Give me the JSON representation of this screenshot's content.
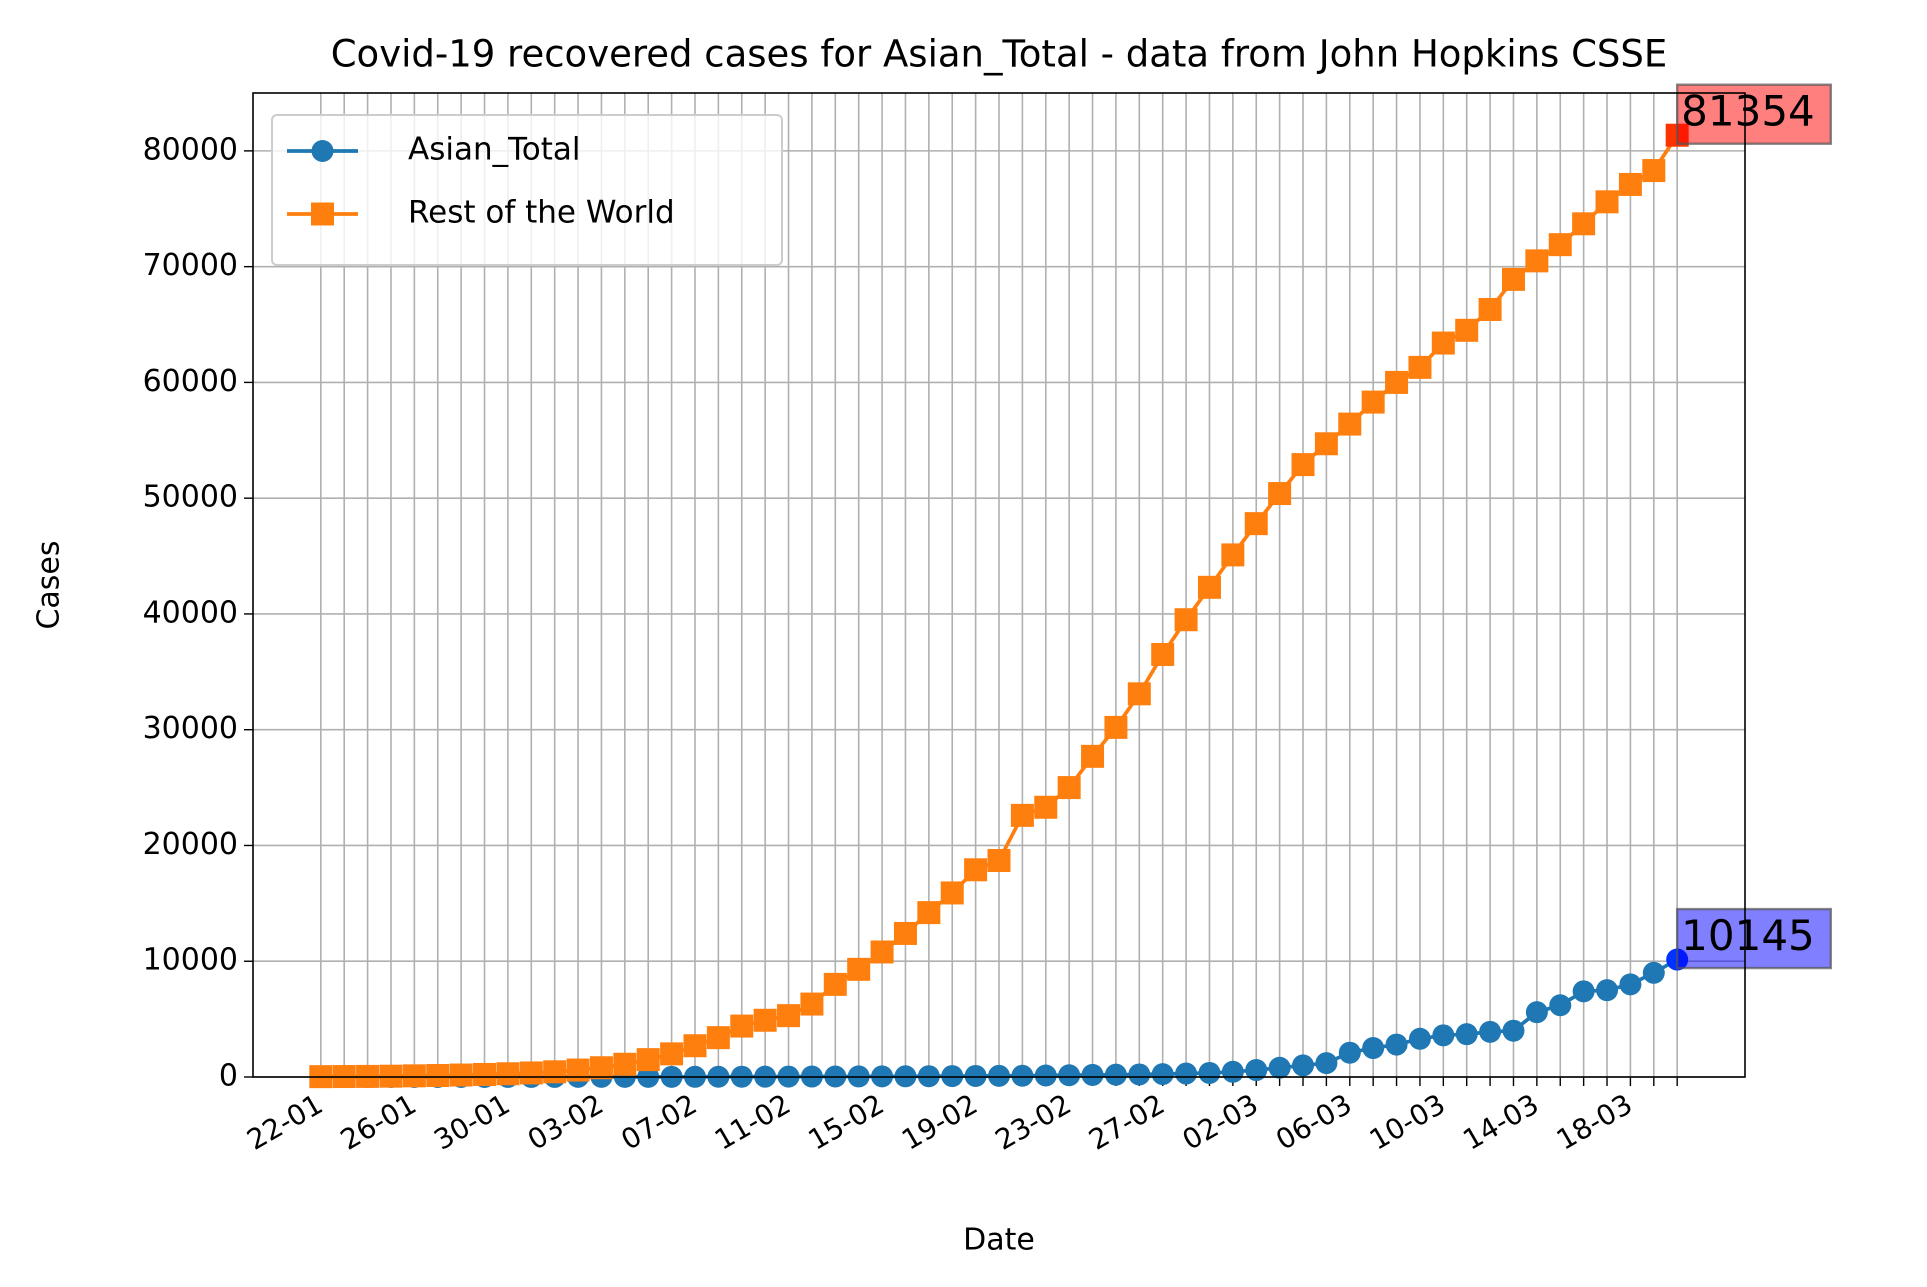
{
  "chart_data": {
    "type": "line",
    "title": "Covid-19 recovered cases for Asian_Total - data from John Hopkins CSSE",
    "x_label": "Date",
    "y_label": "Cases",
    "categories": [
      "22-01",
      null,
      null,
      null,
      "26-01",
      null,
      null,
      null,
      "30-01",
      null,
      null,
      null,
      "03-02",
      null,
      null,
      null,
      "07-02",
      null,
      null,
      null,
      "11-02",
      null,
      null,
      null,
      "15-02",
      null,
      null,
      null,
      "19-02",
      null,
      null,
      null,
      "23-02",
      null,
      null,
      null,
      "27-02",
      null,
      null,
      null,
      "02-03",
      null,
      null,
      null,
      "06-03",
      null,
      null,
      null,
      "10-03",
      null,
      null,
      null,
      "14-03",
      null,
      null,
      null,
      "18-03",
      null,
      null
    ],
    "series": [
      {
        "name": "Asian_Total",
        "color": "#1f77b4",
        "marker": "circle",
        "highlight_color": "#0033ff",
        "label_box_color": "#0000ff",
        "values": [
          1,
          1,
          2,
          2,
          3,
          3,
          4,
          5,
          6,
          7,
          8,
          9,
          10,
          12,
          14,
          16,
          18,
          20,
          25,
          30,
          35,
          40,
          45,
          50,
          55,
          60,
          70,
          80,
          90,
          100,
          110,
          130,
          150,
          180,
          200,
          220,
          250,
          300,
          350,
          450,
          600,
          800,
          1000,
          1200,
          2100,
          2500,
          2800,
          3300,
          3600,
          3700,
          3900,
          4000,
          5600,
          6200,
          7400,
          7500,
          8000,
          9000,
          10145
        ]
      },
      {
        "name": "Rest of the World",
        "color": "#ff7f0e",
        "marker": "square",
        "highlight_color": "#ff3300",
        "label_box_color": "#ff0000",
        "values": [
          30,
          40,
          50,
          70,
          100,
          130,
          170,
          220,
          280,
          350,
          450,
          600,
          800,
          1100,
          1500,
          2000,
          2700,
          3400,
          4400,
          4900,
          5300,
          6300,
          8000,
          9300,
          10800,
          12400,
          14200,
          15900,
          17900,
          18700,
          22600,
          23300,
          25000,
          27700,
          30200,
          33100,
          36500,
          39500,
          42300,
          45100,
          47800,
          50400,
          52900,
          54700,
          56400,
          58300,
          60000,
          61300,
          63400,
          64500,
          66300,
          68900,
          70500,
          71900,
          73700,
          75600,
          77100,
          78300,
          81354
        ]
      }
    ],
    "ylim": [
      0,
      85000
    ],
    "yticks": [
      0,
      10000,
      20000,
      30000,
      40000,
      50000,
      60000,
      70000,
      80000
    ],
    "grid": true,
    "legend": "upper left"
  }
}
